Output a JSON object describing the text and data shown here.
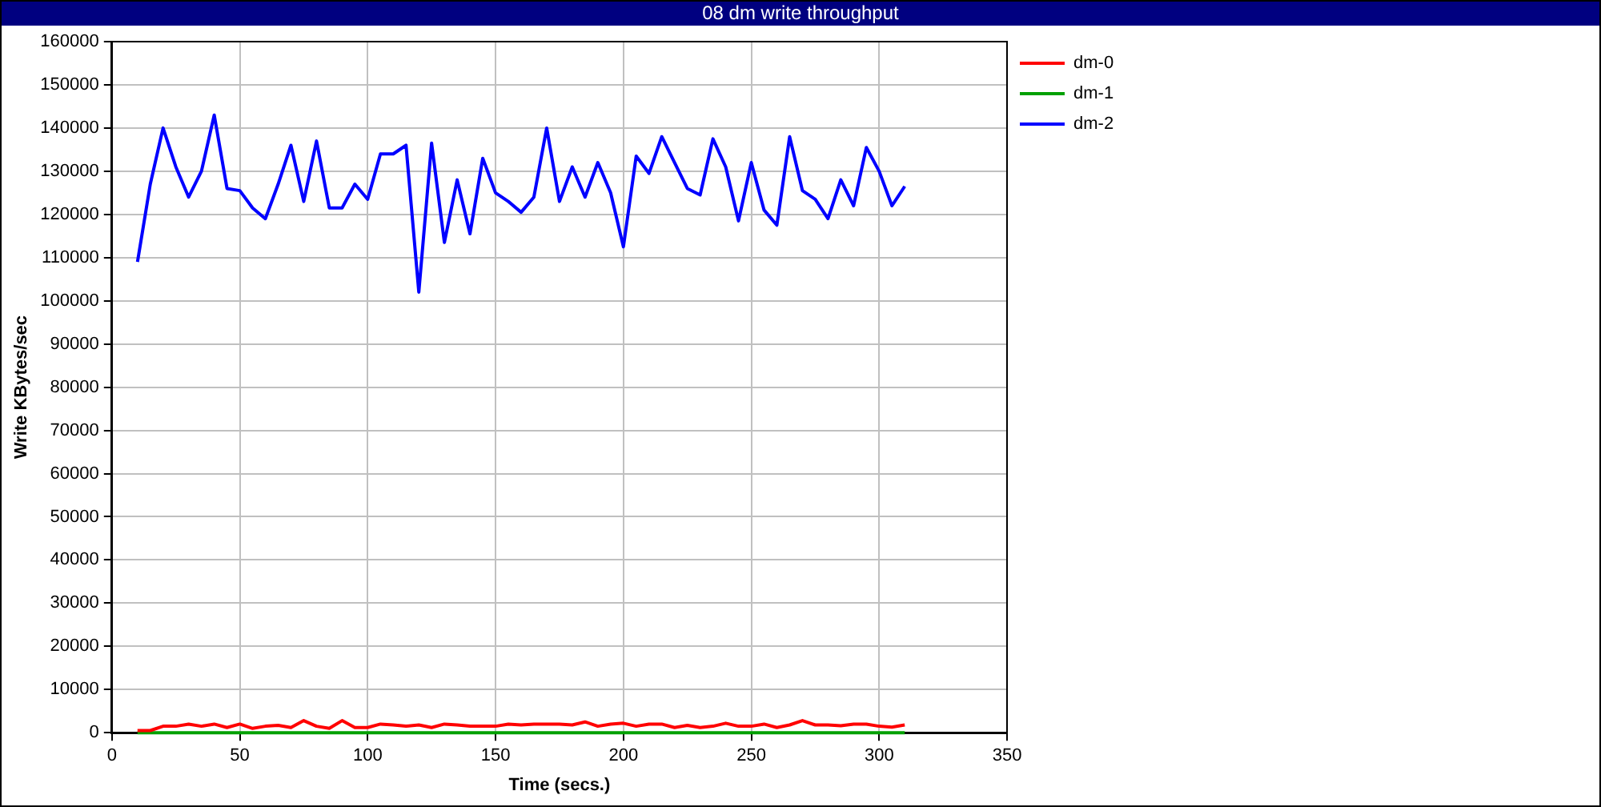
{
  "chart_data": {
    "type": "line",
    "title": "08 dm write throughput",
    "xlabel": "Time (secs.)",
    "ylabel": "Write KBytes/sec",
    "x": [
      10,
      15,
      20,
      25,
      30,
      35,
      40,
      45,
      50,
      55,
      60,
      65,
      70,
      75,
      80,
      85,
      90,
      95,
      100,
      105,
      110,
      115,
      120,
      125,
      130,
      135,
      140,
      145,
      150,
      155,
      160,
      165,
      170,
      175,
      180,
      185,
      190,
      195,
      200,
      205,
      210,
      215,
      220,
      225,
      230,
      235,
      240,
      245,
      250,
      255,
      260,
      265,
      270,
      275,
      280,
      285,
      290,
      295,
      300,
      305,
      310
    ],
    "series": [
      {
        "name": "dm-0",
        "color": "#ff0000",
        "values": [
          500,
          500,
          1500,
          1500,
          2000,
          1500,
          2000,
          1200,
          2000,
          1000,
          1500,
          1700,
          1200,
          2800,
          1500,
          1000,
          2800,
          1200,
          1200,
          2000,
          1800,
          1500,
          1800,
          1200,
          2000,
          1800,
          1500,
          1500,
          1500,
          2000,
          1800,
          2000,
          2000,
          2000,
          1800,
          2500,
          1500,
          2000,
          2200,
          1500,
          2000,
          2000,
          1200,
          1700,
          1200,
          1500,
          2200,
          1500,
          1500,
          2000,
          1200,
          1800,
          2800,
          1800,
          1800,
          1600,
          2000,
          2000,
          1500,
          1300,
          1800
        ]
      },
      {
        "name": "dm-1",
        "color": "#00a000",
        "values": [
          0,
          0,
          0,
          0,
          0,
          0,
          0,
          0,
          0,
          0,
          0,
          0,
          0,
          0,
          0,
          0,
          0,
          0,
          0,
          0,
          0,
          0,
          0,
          0,
          0,
          0,
          0,
          0,
          0,
          0,
          0,
          0,
          0,
          0,
          0,
          0,
          0,
          0,
          0,
          0,
          0,
          0,
          0,
          0,
          0,
          0,
          0,
          0,
          0,
          0,
          0,
          0,
          0,
          0,
          0,
          0,
          0,
          0,
          0,
          0,
          0
        ]
      },
      {
        "name": "dm-2",
        "color": "#0000ff",
        "values": [
          109000,
          127000,
          140000,
          131000,
          124000,
          130000,
          143000,
          126000,
          125500,
          121500,
          119000,
          127000,
          136000,
          123000,
          137000,
          121500,
          121500,
          127000,
          123500,
          134000,
          134000,
          136000,
          102000,
          136500,
          113500,
          128000,
          115500,
          133000,
          125000,
          123000,
          120500,
          124000,
          140000,
          123000,
          131000,
          124000,
          132000,
          125000,
          112500,
          133500,
          129500,
          138000,
          132000,
          126000,
          124500,
          137500,
          131000,
          118500,
          132000,
          121000,
          117500,
          138000,
          125500,
          123500,
          119000,
          128000,
          122000,
          135500,
          130000,
          122000,
          126500
        ]
      }
    ],
    "xlim": [
      0,
      350
    ],
    "xticks": [
      0,
      50,
      100,
      150,
      200,
      250,
      300,
      350
    ],
    "ylim": [
      0,
      160000
    ],
    "yticks": [
      0,
      10000,
      20000,
      30000,
      40000,
      50000,
      60000,
      70000,
      80000,
      90000,
      100000,
      110000,
      120000,
      130000,
      140000,
      150000,
      160000
    ],
    "grid": true,
    "legend": "top right",
    "marker": "none",
    "line_style": "solid"
  }
}
